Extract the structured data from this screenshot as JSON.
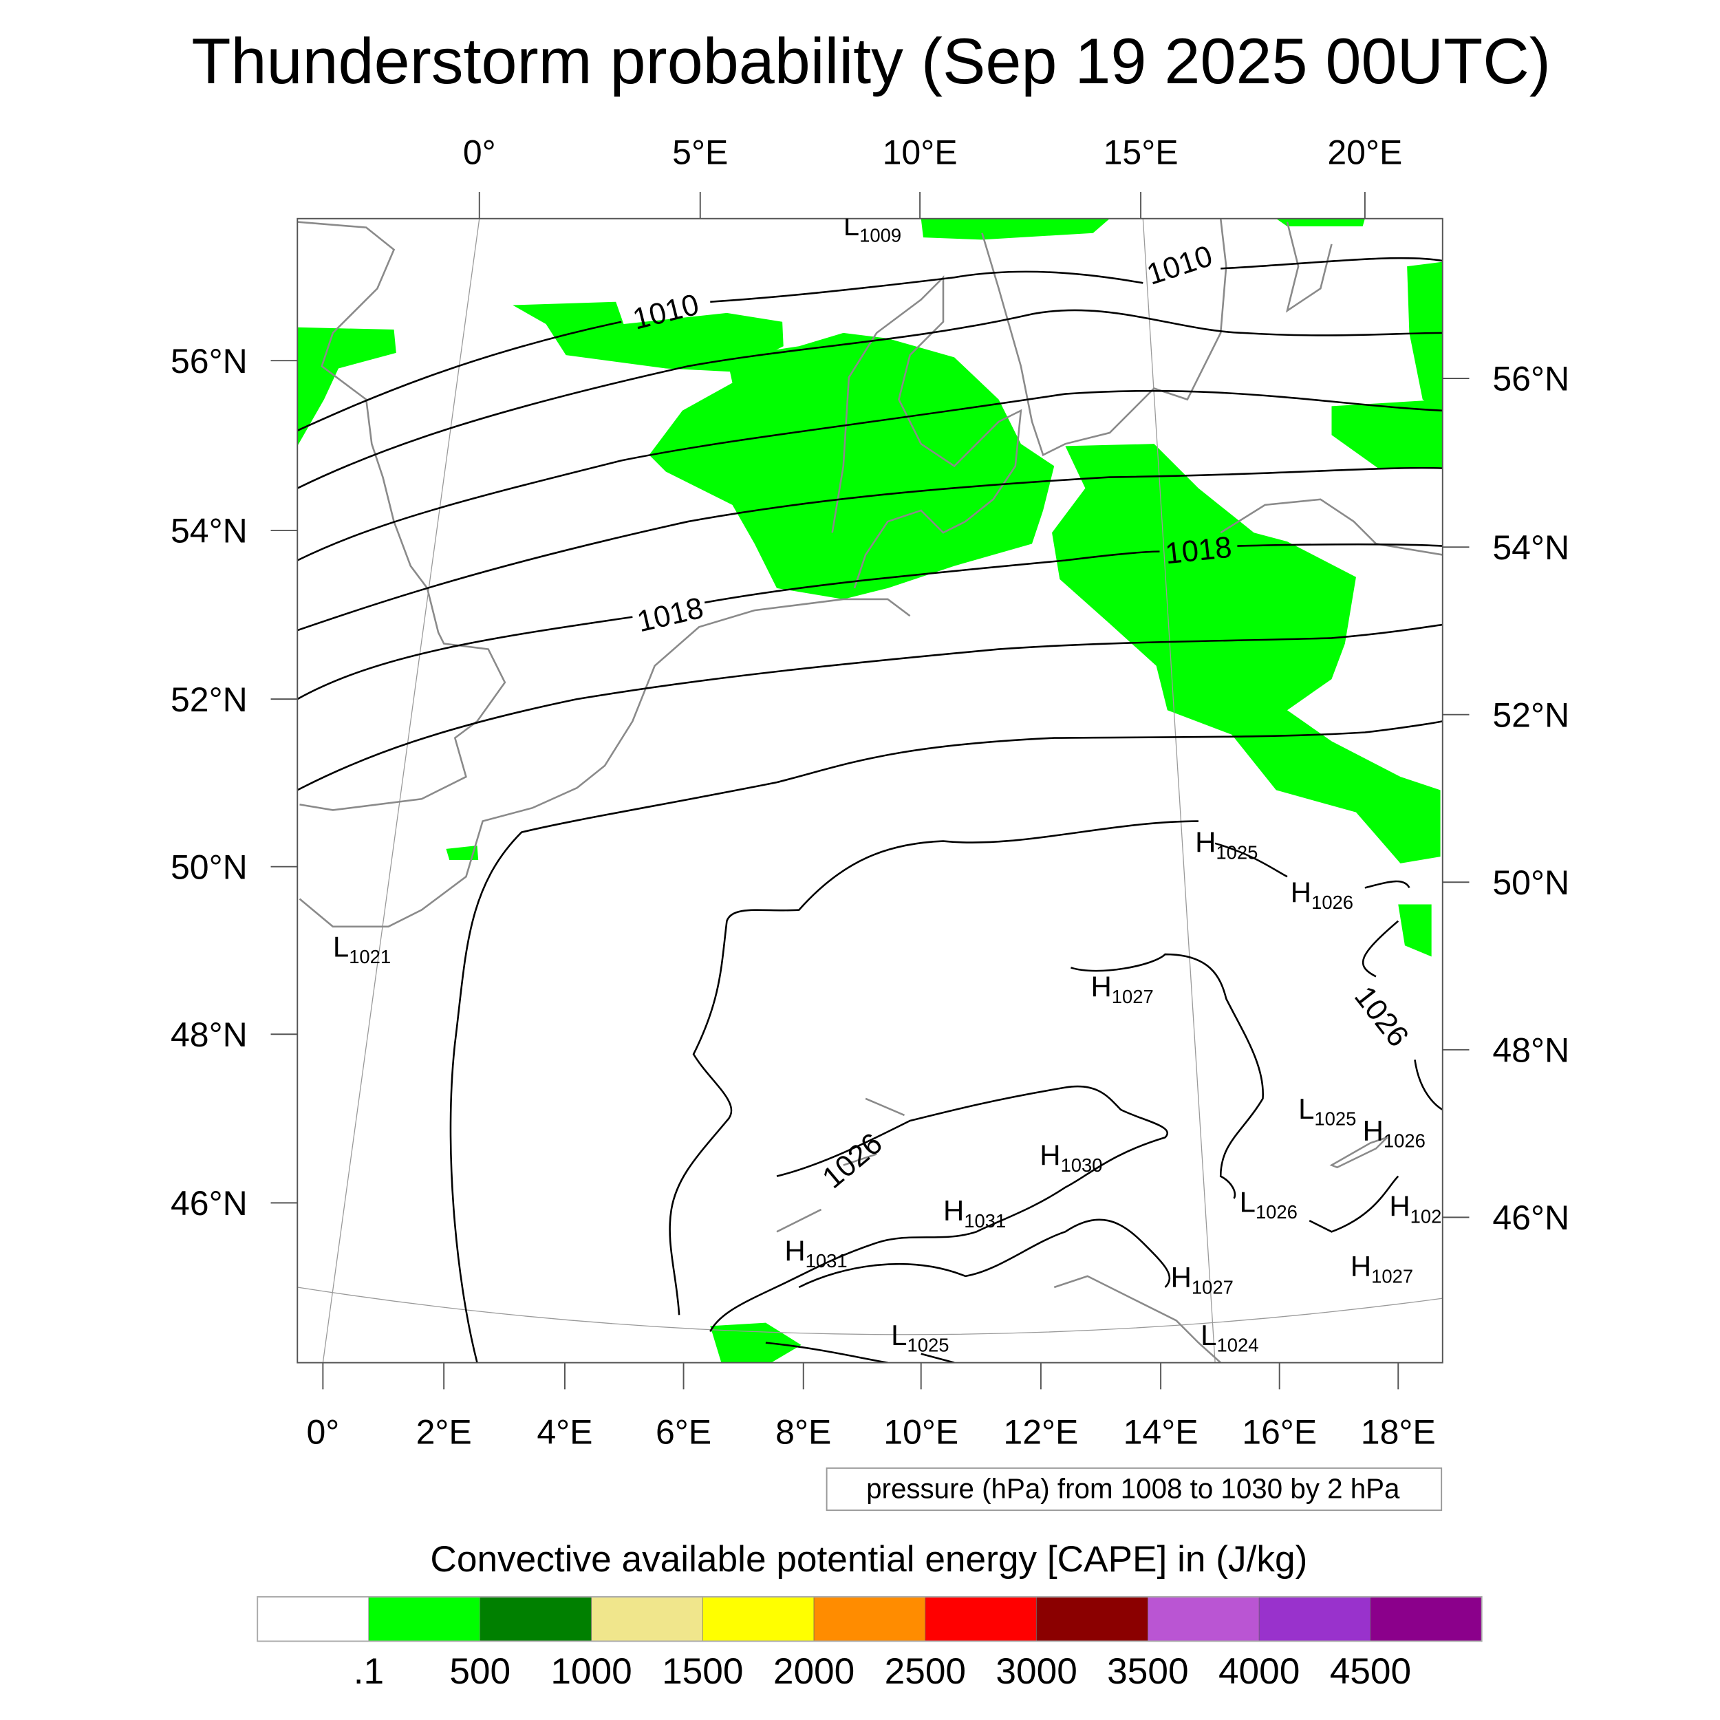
{
  "title": "Thunderstorm probability (Sep 19 2025 00UTC)",
  "axes": {
    "top_lon": [
      "0°",
      "5°E",
      "10°E",
      "15°E",
      "20°E"
    ],
    "bottom_lon": [
      "0°",
      "2°E",
      "4°E",
      "6°E",
      "8°E",
      "10°E",
      "12°E",
      "14°E",
      "16°E",
      "18°E"
    ],
    "left_lat": [
      "56°N",
      "54°N",
      "52°N",
      "50°N",
      "48°N",
      "46°N"
    ],
    "right_lat": [
      "56°N",
      "54°N",
      "52°N",
      "50°N",
      "48°N",
      "46°N"
    ]
  },
  "contour_labels": [
    "1010",
    "1010",
    "1018",
    "1018",
    "1026",
    "1026"
  ],
  "pressure_centers": [
    {
      "type": "L",
      "value": "1009"
    },
    {
      "type": "L",
      "value": "1021"
    },
    {
      "type": "H",
      "value": "1025"
    },
    {
      "type": "H",
      "value": "1026"
    },
    {
      "type": "H",
      "value": "1027"
    },
    {
      "type": "L",
      "value": "1025"
    },
    {
      "type": "H",
      "value": "1026"
    },
    {
      "type": "H",
      "value": "102"
    },
    {
      "type": "H",
      "value": "1030"
    },
    {
      "type": "H",
      "value": "1031"
    },
    {
      "type": "L",
      "value": "1026"
    },
    {
      "type": "H",
      "value": "1031"
    },
    {
      "type": "H",
      "value": "1027"
    },
    {
      "type": "H",
      "value": "1027"
    },
    {
      "type": "L",
      "value": "1025"
    },
    {
      "type": "L",
      "value": "1024"
    }
  ],
  "contour_info": "pressure (hPa) from 1008 to 1030 by 2 hPa",
  "colorbar": {
    "title": "Convective available potential energy [CAPE] in (J/kg)",
    "colors": [
      "#ffffff",
      "#00ff00",
      "#008000",
      "#f0e68c",
      "#ffff00",
      "#ff8c00",
      "#ff0000",
      "#8b0000",
      "#ba55d3",
      "#9932cc",
      "#8b008b"
    ],
    "labels": [
      ".1",
      "500",
      "1000",
      "1500",
      "2000",
      "2500",
      "3000",
      "3500",
      "4000",
      "4500"
    ]
  },
  "cape_fill_color": "#00ff00"
}
